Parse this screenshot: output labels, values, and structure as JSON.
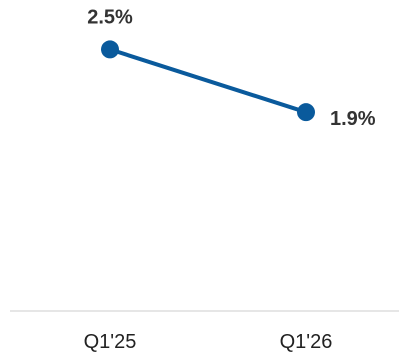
{
  "chart_data": {
    "type": "line",
    "categories": [
      "Q1'25",
      "Q1'26"
    ],
    "series": [
      {
        "values": [
          2.5,
          1.9
        ],
        "labels": [
          "2.5%",
          "1.9%"
        ],
        "color": "#0a5a9c"
      }
    ],
    "title": "",
    "xlabel": "",
    "ylabel": "",
    "ylim": [
      0,
      2.8
    ],
    "grid": false,
    "legend": "none",
    "colors": {
      "line": "#0a5a9c",
      "axis": "#cccccc",
      "label_text": "#333333",
      "tick_text": "#222222"
    }
  }
}
